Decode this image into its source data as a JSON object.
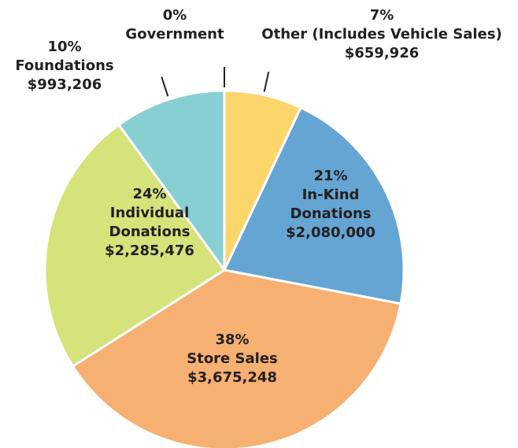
{
  "chart_data": {
    "type": "pie",
    "categories": [
      "Government",
      "Other (Includes Vehicle Sales)",
      "In-Kind Donations",
      "Store Sales",
      "Individual Donations",
      "Foundations"
    ],
    "values": [
      0,
      7,
      21,
      38,
      24,
      10
    ],
    "value_labels": [
      "0%",
      "7%",
      "21%",
      "38%",
      "24%",
      "10%"
    ],
    "amount_labels": [
      null,
      "$659,926",
      "$2,080,000",
      "$3,675,248",
      "$2,285,476",
      "$993,206"
    ],
    "colors": [
      "#b9c4cc",
      "#fdd66b",
      "#65a5d3",
      "#f6b072",
      "#d6e27a",
      "#87cfd2"
    ]
  }
}
